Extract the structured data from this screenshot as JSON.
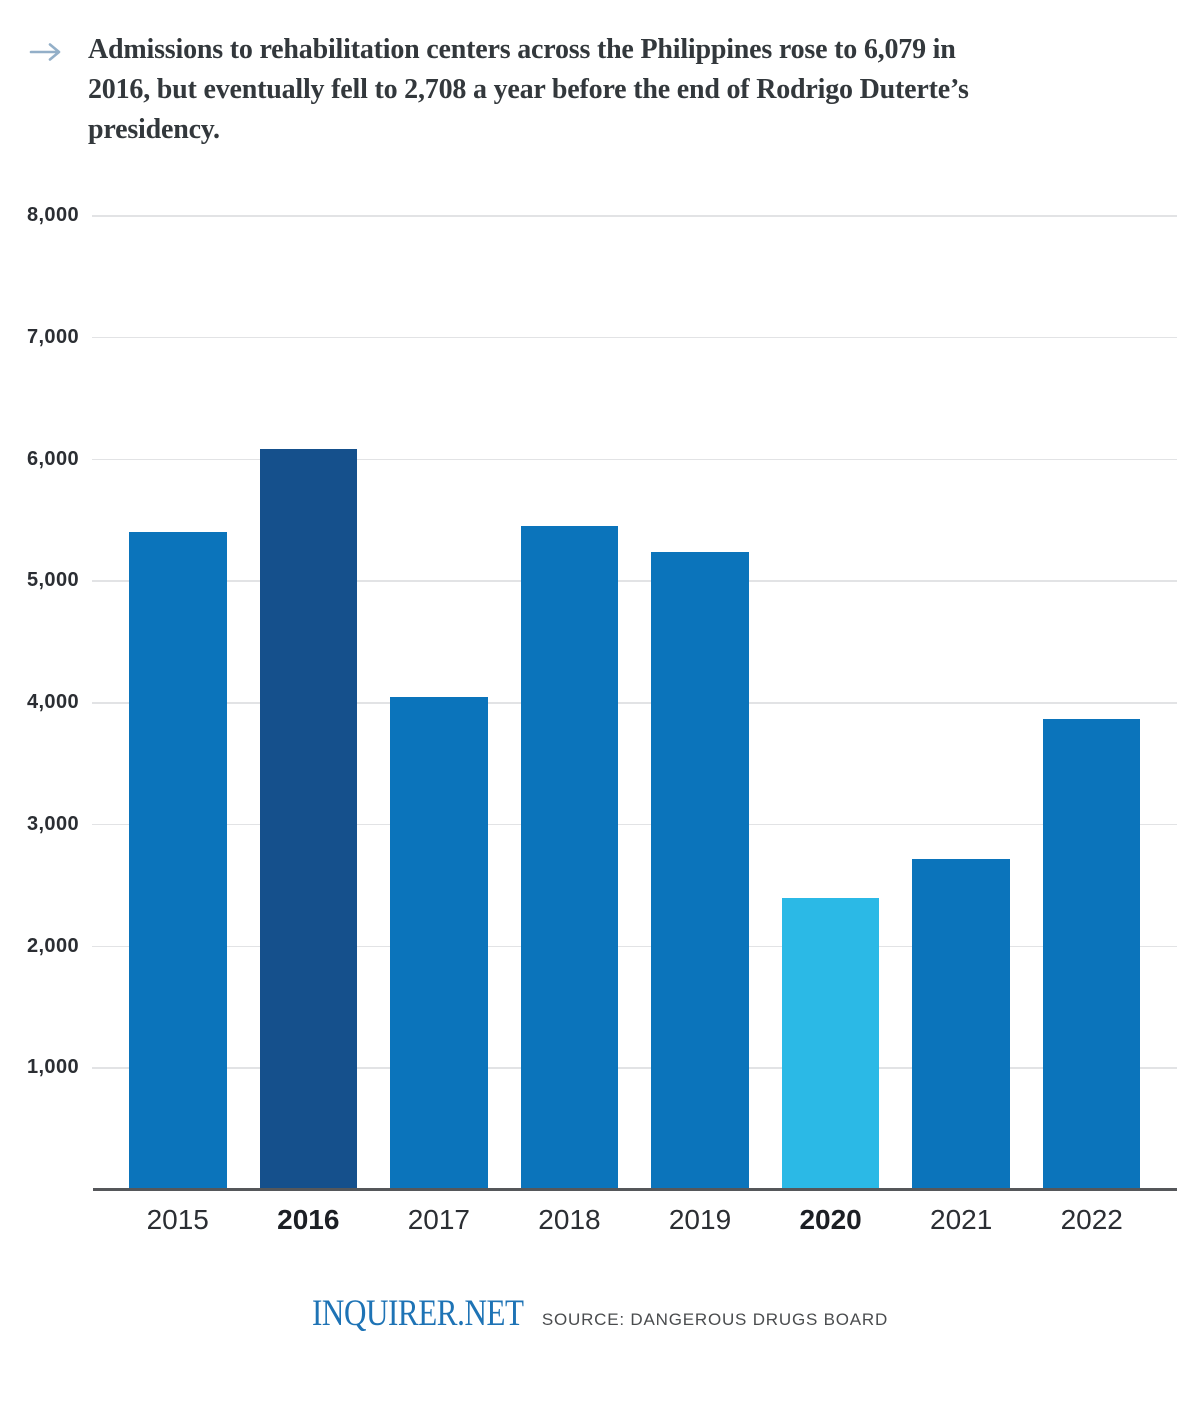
{
  "header": {
    "arrow_icon": "right-arrow",
    "title": "Admissions to rehabilitation centers across the Philippines rose to 6,079 in 2016, but eventually fell to 2,708 a year before the end of Rodrigo Duterte’s presidency.",
    "title_lines": [
      "Admissions to rehabilitation centers across the Philippines rose to 6,079 in",
      "2016, but eventually fell to 2,708 a year before the end of Rodrigo Duterte’s",
      "presidency."
    ]
  },
  "chart_data": {
    "type": "bar",
    "title": "Admissions to rehabilitation centers across the Philippines rose to 6,079 in 2016, but eventually fell to 2,708 a year before the end of Rodrigo Duterte’s presidency.",
    "categories": [
      "2015",
      "2016",
      "2017",
      "2018",
      "2019",
      "2020",
      "2021",
      "2022"
    ],
    "values": [
      5400,
      6079,
      4045,
      5445,
      5230,
      2390,
      2708,
      3860
    ],
    "highlighted_categories": [
      "2016",
      "2020"
    ],
    "bar_colors": {
      "default": "#0b74bb",
      "2016": "#15508c",
      "2020": "#2bb9e6"
    },
    "xlabel": "",
    "ylabel": "",
    "ylim": [
      0,
      8000
    ],
    "yticks": [
      1000,
      2000,
      3000,
      4000,
      5000,
      6000,
      7000,
      8000
    ],
    "ytick_labels": [
      "1,000",
      "2,000",
      "3,000",
      "4,000",
      "5,000",
      "6,000",
      "7,000",
      "8,000"
    ],
    "grid": true,
    "legend": false
  },
  "footer": {
    "logo": "INQUIRER.NET",
    "source": "SOURCE: DANGEROUS DRUGS BOARD"
  },
  "theme": {
    "bar_default": "#0b74bb",
    "bar_2016": "#15508c",
    "bar_2020": "#2bb9e6",
    "arrow": "#93afc8",
    "title_text": "#33383c",
    "axis_line": "#55575a",
    "gridline": "#e2e3e5",
    "tick_text": "#2b2e33",
    "logo_blue": "#1e73b5",
    "source_text": "#4a4c4e"
  }
}
